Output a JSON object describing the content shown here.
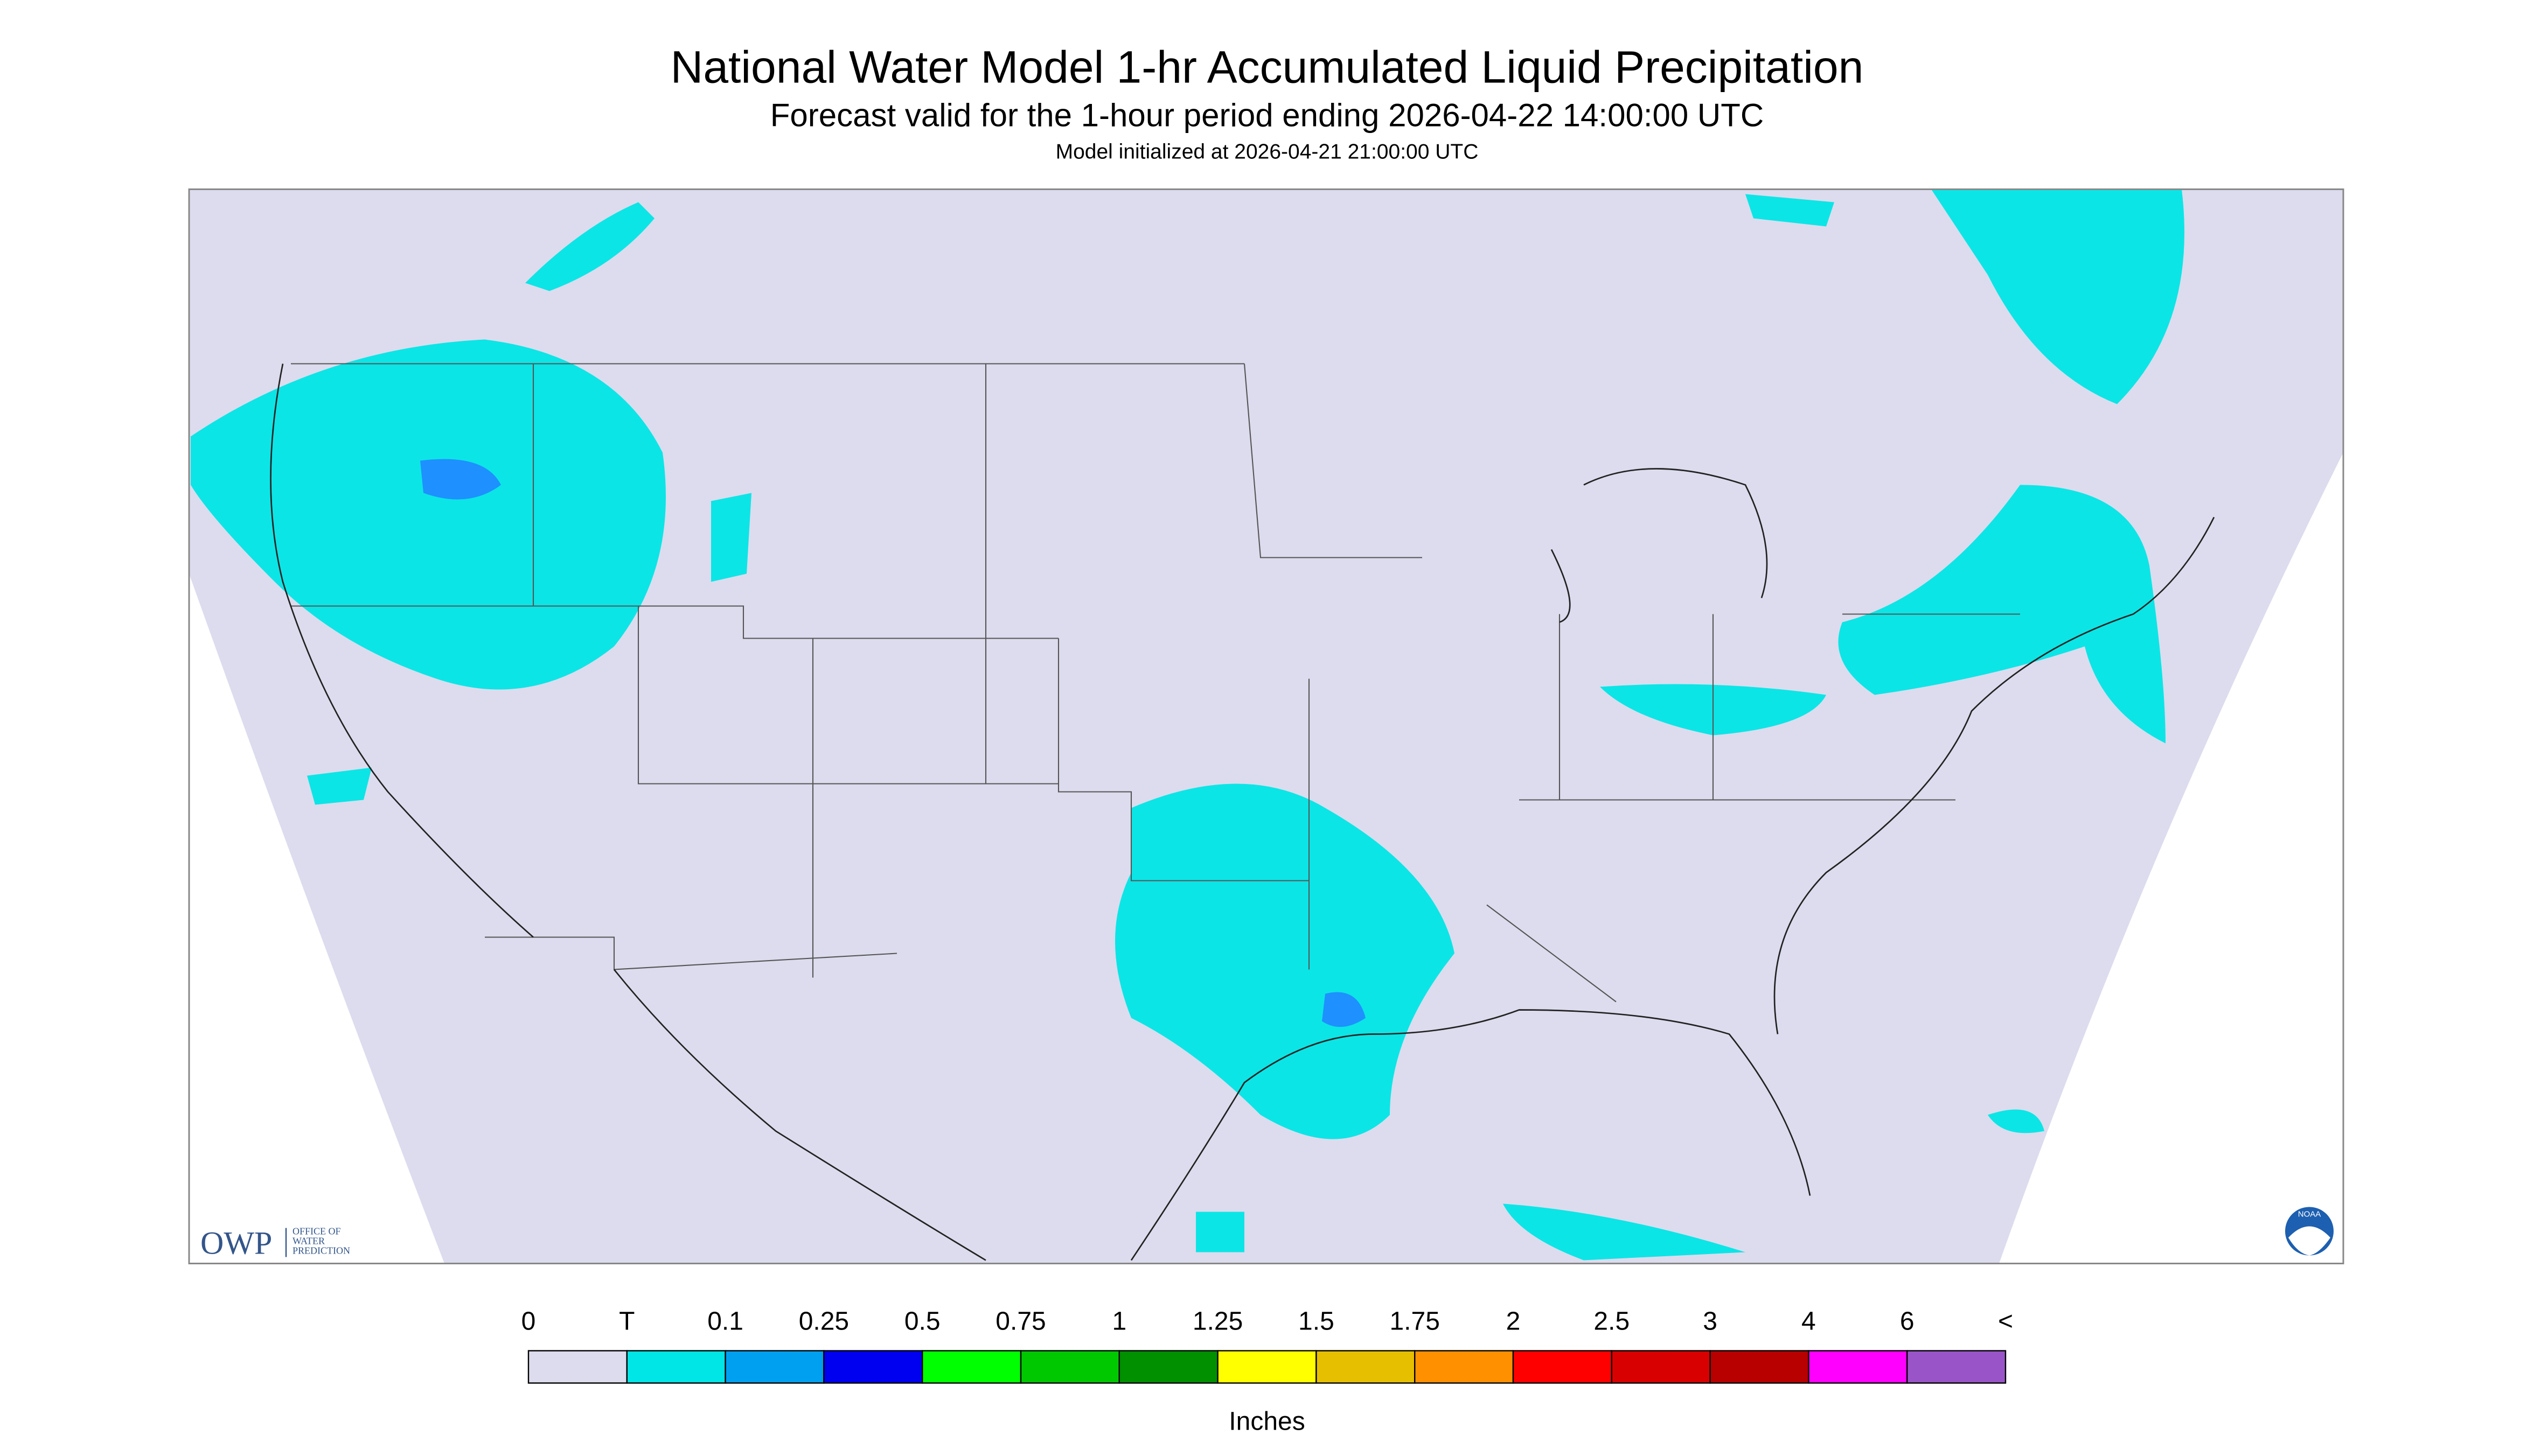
{
  "header": {
    "title": "National Water Model 1-hr Accumulated Liquid Precipitation",
    "subtitle": "Forecast valid for the 1-hour period ending 2026-04-22 14:00:00 UTC",
    "initialized": "Model initialized at 2026-04-21 21:00:00 UTC"
  },
  "logo": {
    "owp": "OWP",
    "owp_name": [
      "OFFICE OF",
      "WATER",
      "PREDICTION"
    ],
    "noaa": "NOAA"
  },
  "legend": {
    "labels": [
      "0",
      "T",
      "0.1",
      "0.25",
      "0.5",
      "0.75",
      "1",
      "1.25",
      "1.5",
      "1.75",
      "2",
      "2.5",
      "3",
      "4",
      "6",
      "<"
    ],
    "colors": [
      "#dcdcee",
      "#00e5e5",
      "#00a0f0",
      "#0000f0",
      "#00ff00",
      "#00c800",
      "#009000",
      "#ffff00",
      "#e6c000",
      "#ff9000",
      "#ff0000",
      "#d80000",
      "#b80000",
      "#ff00ff",
      "#9955c8"
    ],
    "units": "Inches"
  }
}
